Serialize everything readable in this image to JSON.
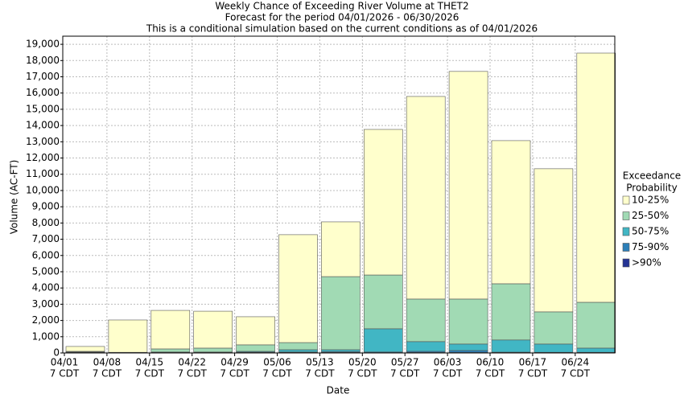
{
  "chart_data": {
    "type": "stacked-bar",
    "title": "Weekly Chance of Exceeding River Volume at THET2",
    "subtitle": "Forecast for the period 04/01/2026 - 06/30/2026",
    "note": "This is a conditional simulation based on the current conditions as of 04/01/2026",
    "x_label": "Date",
    "y_label": "Volume (AC-FT)",
    "legend_title": [
      "Exceedance",
      "Probability"
    ],
    "categories": [
      "04/01",
      "04/08",
      "04/15",
      "04/22",
      "04/29",
      "05/06",
      "05/13",
      "05/20",
      "05/27",
      "06/03",
      "06/10",
      "06/17",
      "06/24"
    ],
    "category_sublabels": [
      "7 CDT",
      "7 CDT",
      "7 CDT",
      "7 CDT",
      "7 CDT",
      "7 CDT",
      "7 CDT",
      "7 CDT",
      "7 CDT",
      "7 CDT",
      "7 CDT",
      "7 CDT",
      "7 CDT"
    ],
    "series": [
      {
        "name": ">90%",
        "color": "#253494",
        "values": [
          20,
          10,
          20,
          20,
          20,
          30,
          30,
          20,
          30,
          30,
          20,
          20,
          20
        ]
      },
      {
        "name": "75-90%",
        "color": "#2c7fb8",
        "values": [
          20,
          10,
          20,
          20,
          30,
          30,
          50,
          40,
          70,
          120,
          30,
          20,
          20
        ]
      },
      {
        "name": "50-75%",
        "color": "#41b6c4",
        "values": [
          20,
          10,
          20,
          20,
          50,
          140,
          120,
          1430,
          600,
          400,
          750,
          510,
          260
        ]
      },
      {
        "name": "25-50%",
        "color": "#a1dab4",
        "values": [
          40,
          10,
          190,
          240,
          400,
          440,
          4500,
          3310,
          2620,
          2770,
          3460,
          1980,
          2820
        ]
      },
      {
        "name": "10-25%",
        "color": "#ffffcc",
        "values": [
          300,
          1990,
          2370,
          2270,
          1730,
          6640,
          3370,
          8960,
          12470,
          14010,
          8810,
          8810,
          15340
        ]
      }
    ],
    "ylim": [
      0,
      19500
    ],
    "yticks": [
      0,
      {
        "value": 1000,
        "label": "1,000"
      },
      {
        "value": 2000,
        "label": "2,000"
      },
      {
        "value": 3000,
        "label": "3,000"
      },
      {
        "value": 4000,
        "label": "4,000"
      },
      {
        "value": 5000,
        "label": "5,000"
      },
      {
        "value": 6000,
        "label": "6,000"
      },
      {
        "value": 7000,
        "label": "7,000"
      },
      {
        "value": 8000,
        "label": "8,000"
      },
      {
        "value": 9000,
        "label": "9,000"
      },
      {
        "value": 10000,
        "label": "10,000"
      },
      {
        "value": 11000,
        "label": "11,000"
      },
      {
        "value": 12000,
        "label": "12,000"
      },
      {
        "value": 13000,
        "label": "13,000"
      },
      {
        "value": 14000,
        "label": "14,000"
      },
      {
        "value": 15000,
        "label": "15,000"
      },
      {
        "value": 16000,
        "label": "16,000"
      },
      {
        "value": 17000,
        "label": "17,000"
      },
      {
        "value": 18000,
        "label": "18,000"
      },
      {
        "value": 19000,
        "label": "19,000"
      }
    ],
    "grid": true
  }
}
